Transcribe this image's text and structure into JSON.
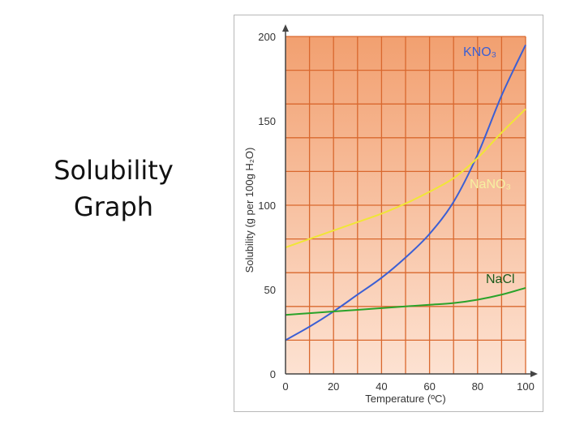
{
  "slide": {
    "title_line1": "Solubility",
    "title_line2": "Graph"
  },
  "chart_data": {
    "type": "line",
    "title": "",
    "xlabel": "Temperature (ºC)",
    "ylabel": "Solubility (g per 100g H₂O)",
    "xlim": [
      0,
      100
    ],
    "ylim": [
      0,
      200
    ],
    "xticks": [
      "0",
      "20",
      "40",
      "60",
      "80",
      "100"
    ],
    "yticks": [
      "0",
      "50",
      "100",
      "150",
      "200"
    ],
    "grid": true,
    "colors": {
      "plot_bg_top": "#f2a070",
      "plot_bg_bottom": "#fde2d2",
      "grid": "#d9682e",
      "axis": "#444444"
    },
    "series": [
      {
        "name": "KNO₃",
        "color": "#3b5fd4",
        "label_color": "#3b5fd4",
        "x": [
          0,
          10,
          20,
          30,
          40,
          50,
          60,
          70,
          80,
          90,
          100
        ],
        "y": [
          20,
          28,
          37,
          47,
          57,
          69,
          83,
          102,
          130,
          165,
          195
        ]
      },
      {
        "name": "NaNO₃",
        "color": "#f0e636",
        "label_color": "#f6f0a0",
        "x": [
          0,
          10,
          20,
          30,
          40,
          50,
          60,
          70,
          80,
          90,
          100
        ],
        "y": [
          75,
          80,
          85,
          90,
          95,
          101,
          108,
          116,
          128,
          143,
          157
        ]
      },
      {
        "name": "NaCl",
        "color": "#2aa32a",
        "label_color": "#1a5a1a",
        "x": [
          0,
          10,
          20,
          30,
          40,
          50,
          60,
          70,
          80,
          90,
          100
        ],
        "y": [
          35,
          36,
          37,
          38,
          39,
          40,
          41,
          42,
          44,
          47,
          51
        ]
      }
    ]
  }
}
